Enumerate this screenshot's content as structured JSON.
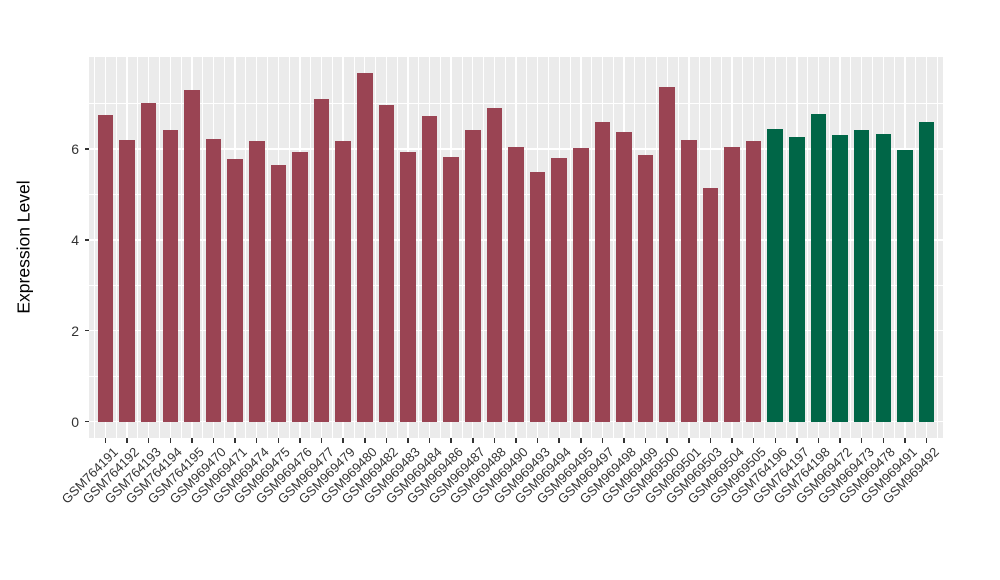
{
  "chart_data": {
    "type": "bar",
    "title": "",
    "xlabel": "",
    "ylabel": "Expression Level",
    "legend": "none",
    "grid": "on",
    "y_ticks": [
      0,
      2,
      4,
      6
    ],
    "y_minor_ticks": [
      1,
      3,
      5,
      7
    ],
    "ylim_panel": [
      -0.36,
      8.02
    ],
    "bar_width_ratio": 0.72,
    "colors": {
      "group1": "#9A4453",
      "group2": "#006647",
      "panel_background": "#EBEBEB",
      "gridline": "#FFFFFF",
      "tick_text": "#333333",
      "axis_title": "#000000"
    },
    "samples": [
      {
        "label": "GSM764191",
        "value": 6.75,
        "group": "group1"
      },
      {
        "label": "GSM764192",
        "value": 6.2,
        "group": "group1"
      },
      {
        "label": "GSM764193",
        "value": 7.0,
        "group": "group1"
      },
      {
        "label": "GSM764194",
        "value": 6.42,
        "group": "group1"
      },
      {
        "label": "GSM764195",
        "value": 7.3,
        "group": "group1"
      },
      {
        "label": "GSM969470",
        "value": 6.22,
        "group": "group1"
      },
      {
        "label": "GSM969471",
        "value": 5.77,
        "group": "group1"
      },
      {
        "label": "GSM969474",
        "value": 6.18,
        "group": "group1"
      },
      {
        "label": "GSM969475",
        "value": 5.65,
        "group": "group1"
      },
      {
        "label": "GSM969476",
        "value": 5.92,
        "group": "group1"
      },
      {
        "label": "GSM969477",
        "value": 7.1,
        "group": "group1"
      },
      {
        "label": "GSM969479",
        "value": 6.18,
        "group": "group1"
      },
      {
        "label": "GSM969480",
        "value": 7.66,
        "group": "group1"
      },
      {
        "label": "GSM969482",
        "value": 6.96,
        "group": "group1"
      },
      {
        "label": "GSM969483",
        "value": 5.92,
        "group": "group1"
      },
      {
        "label": "GSM969484",
        "value": 6.73,
        "group": "group1"
      },
      {
        "label": "GSM969486",
        "value": 5.82,
        "group": "group1"
      },
      {
        "label": "GSM969487",
        "value": 6.42,
        "group": "group1"
      },
      {
        "label": "GSM969488",
        "value": 6.9,
        "group": "group1"
      },
      {
        "label": "GSM969490",
        "value": 6.04,
        "group": "group1"
      },
      {
        "label": "GSM969493",
        "value": 5.49,
        "group": "group1"
      },
      {
        "label": "GSM969494",
        "value": 5.79,
        "group": "group1"
      },
      {
        "label": "GSM969495",
        "value": 6.01,
        "group": "group1"
      },
      {
        "label": "GSM969497",
        "value": 6.58,
        "group": "group1"
      },
      {
        "label": "GSM969498",
        "value": 6.36,
        "group": "group1"
      },
      {
        "label": "GSM969499",
        "value": 5.87,
        "group": "group1"
      },
      {
        "label": "GSM969500",
        "value": 7.37,
        "group": "group1"
      },
      {
        "label": "GSM969501",
        "value": 6.2,
        "group": "group1"
      },
      {
        "label": "GSM969503",
        "value": 5.13,
        "group": "group1"
      },
      {
        "label": "GSM969504",
        "value": 6.03,
        "group": "group1"
      },
      {
        "label": "GSM969505",
        "value": 6.17,
        "group": "group1"
      },
      {
        "label": "GSM764196",
        "value": 6.43,
        "group": "group2"
      },
      {
        "label": "GSM764197",
        "value": 6.26,
        "group": "group2"
      },
      {
        "label": "GSM764198",
        "value": 6.77,
        "group": "group2"
      },
      {
        "label": "GSM969472",
        "value": 6.3,
        "group": "group2"
      },
      {
        "label": "GSM969473",
        "value": 6.42,
        "group": "group2"
      },
      {
        "label": "GSM969478",
        "value": 6.32,
        "group": "group2"
      },
      {
        "label": "GSM969491",
        "value": 5.97,
        "group": "group2"
      },
      {
        "label": "GSM969492",
        "value": 6.58,
        "group": "group2"
      }
    ]
  }
}
